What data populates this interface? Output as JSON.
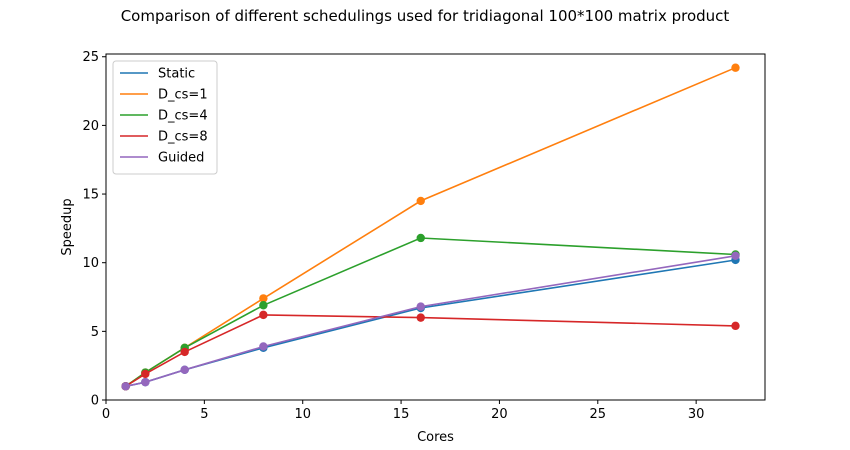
{
  "chart_data": {
    "type": "line",
    "title": "Comparison of different schedulings used for tridiagonal 100*100 matrix product",
    "xlabel": "Cores",
    "ylabel": "Speedup",
    "xlim": [
      0,
      33.5
    ],
    "ylim": [
      0,
      25.2
    ],
    "xticks": [
      0,
      5,
      10,
      15,
      20,
      25,
      30
    ],
    "yticks": [
      0,
      5,
      10,
      15,
      20,
      25
    ],
    "grid": false,
    "legend_position": "upper left",
    "x": [
      1,
      2,
      4,
      8,
      16,
      32
    ],
    "series": [
      {
        "name": "Static",
        "color": "#1f77b4",
        "values": [
          1.0,
          1.3,
          2.2,
          3.8,
          6.7,
          10.2
        ]
      },
      {
        "name": "D_cs=1",
        "color": "#ff7f0e",
        "values": [
          1.0,
          2.0,
          3.8,
          7.4,
          14.5,
          24.2
        ]
      },
      {
        "name": "D_cs=4",
        "color": "#2ca02c",
        "values": [
          1.0,
          2.0,
          3.8,
          6.9,
          11.8,
          10.6
        ]
      },
      {
        "name": "D_cs=8",
        "color": "#d62728",
        "values": [
          1.0,
          1.9,
          3.5,
          6.2,
          6.0,
          5.4
        ]
      },
      {
        "name": "Guided",
        "color": "#9467bd",
        "values": [
          1.0,
          1.3,
          2.2,
          3.9,
          6.8,
          10.5
        ]
      }
    ]
  }
}
